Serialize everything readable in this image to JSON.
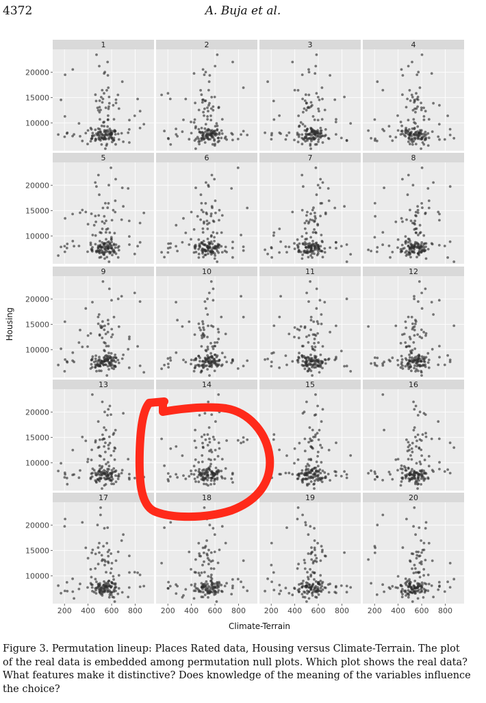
{
  "header": {
    "page_number": "4372",
    "running_head": "A. Buja et al."
  },
  "caption": "Figure 3. Permutation lineup: Places Rated data, Housing versus Climate-Terrain. The plot of the real data is embedded among permutation null plots. Which plot shows the real data? What features make it distinctive? Does knowledge of the meaning of the variables influence the choice?",
  "colors": {
    "panel_bg": "#ebebeb",
    "strip_bg": "#d9d9d9",
    "gridline": "#ffffff",
    "point": "#2b2b2b",
    "annotation": "#ff2a1a"
  },
  "annotation": {
    "type": "hand-drawn circle",
    "encircles_panel": "14"
  },
  "chart_data": {
    "type": "scatter",
    "layout": "small multiples lineup, 4 columns x 5 rows",
    "xlabel": "Climate-Terrain",
    "ylabel": "Housing",
    "x_ticks": [
      200,
      400,
      600,
      800
    ],
    "y_ticks": [
      10000,
      15000,
      20000
    ],
    "x_tick_labels": [
      "200",
      "400",
      "600",
      "800"
    ],
    "y_tick_labels": [
      "10000",
      "15000",
      "20000"
    ],
    "xlim": [
      100,
      960
    ],
    "ylim": [
      4500,
      24500
    ],
    "grid": true,
    "panels": [
      "1",
      "2",
      "3",
      "4",
      "5",
      "6",
      "7",
      "8",
      "9",
      "10",
      "11",
      "12",
      "13",
      "14",
      "15",
      "16",
      "17",
      "18",
      "19",
      "20"
    ],
    "real_data_panel": "14",
    "n_points_per_panel": 160,
    "note": "Each panel is a scatter of Housing vs Climate-Terrain; null panels permute Housing. Points concentrate near Climate-Terrain 520-560 and Housing 7000-8000."
  }
}
